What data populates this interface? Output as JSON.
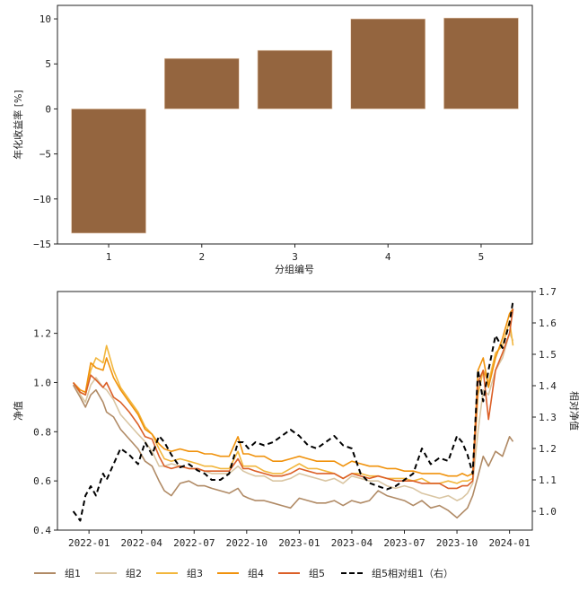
{
  "chart_data": [
    {
      "type": "bar",
      "title": "",
      "xlabel": "分组编号",
      "ylabel": "年化收益率 [%]",
      "categories": [
        "1",
        "2",
        "3",
        "4",
        "5"
      ],
      "values": [
        -13.8,
        5.6,
        6.5,
        10.0,
        10.1
      ],
      "ylim": [
        -15,
        11.5
      ],
      "yticks": [
        -15,
        -10,
        -5,
        0,
        5,
        10
      ],
      "ytick_labels": [
        "−15",
        "−10",
        "−5",
        "0",
        "5",
        "10"
      ],
      "color": "#94653f",
      "grid": false
    },
    {
      "type": "line",
      "title": "",
      "xlabel": "",
      "ylabel": "净值",
      "ylabel_right": "相对净值",
      "x_ticks": [
        "2022-01",
        "2022-04",
        "2022-07",
        "2022-10",
        "2023-01",
        "2023-04",
        "2023-07",
        "2023-10",
        "2024-01"
      ],
      "ylim": [
        0.4,
        1.37
      ],
      "yticks": [
        0.4,
        0.6,
        0.8,
        1.0,
        1.2
      ],
      "ytick_labels": [
        "0.4",
        "0.6",
        "0.8",
        "1.0",
        "1.2"
      ],
      "ylim_right": [
        0.94,
        1.7
      ],
      "yticks_right": [
        1.0,
        1.1,
        1.2,
        1.3,
        1.4,
        1.5,
        1.6,
        1.7
      ],
      "ytick_labels_right": [
        "1.0",
        "1.1",
        "1.2",
        "1.3",
        "1.4",
        "1.5",
        "1.6",
        "1.7"
      ],
      "x_range_months": [
        -1.8,
        25.3
      ],
      "x_months": [
        -0.9,
        -0.5,
        -0.2,
        0.1,
        0.4,
        0.8,
        1.0,
        1.4,
        1.8,
        2.3,
        2.8,
        3.2,
        3.6,
        4.0,
        4.3,
        4.7,
        5.2,
        5.7,
        6.2,
        6.6,
        7.0,
        7.5,
        8.0,
        8.5,
        8.8,
        9.1,
        9.5,
        10.0,
        10.5,
        11.0,
        11.5,
        12.0,
        12.5,
        13.0,
        13.5,
        14.0,
        14.5,
        15.0,
        15.5,
        16.0,
        16.5,
        17.0,
        17.5,
        18.0,
        18.5,
        19.0,
        19.5,
        20.0,
        20.5,
        21.0,
        21.3,
        21.6,
        21.9,
        22.2,
        22.5,
        22.8,
        23.2,
        23.6,
        24.0,
        24.2
      ],
      "legend_position": "bottom",
      "grid": false,
      "series": [
        {
          "name": "组1",
          "color": "#b08a65",
          "axis": "left",
          "dashed": false,
          "values": [
            0.99,
            0.94,
            0.9,
            0.95,
            0.97,
            0.92,
            0.88,
            0.86,
            0.81,
            0.77,
            0.73,
            0.68,
            0.66,
            0.6,
            0.56,
            0.54,
            0.59,
            0.6,
            0.58,
            0.58,
            0.57,
            0.56,
            0.55,
            0.57,
            0.54,
            0.53,
            0.52,
            0.52,
            0.51,
            0.5,
            0.49,
            0.53,
            0.52,
            0.51,
            0.51,
            0.52,
            0.5,
            0.52,
            0.51,
            0.52,
            0.56,
            0.54,
            0.53,
            0.52,
            0.5,
            0.52,
            0.49,
            0.5,
            0.48,
            0.45,
            0.47,
            0.49,
            0.54,
            0.62,
            0.7,
            0.66,
            0.72,
            0.7,
            0.78,
            0.76
          ]
        },
        {
          "name": "组2",
          "color": "#d9c5a2",
          "axis": "left",
          "dashed": false,
          "values": [
            1.0,
            0.95,
            0.92,
            0.99,
            1.02,
            0.98,
            0.97,
            0.93,
            0.87,
            0.83,
            0.79,
            0.76,
            0.72,
            0.66,
            0.66,
            0.67,
            0.66,
            0.65,
            0.65,
            0.64,
            0.63,
            0.63,
            0.63,
            0.66,
            0.64,
            0.63,
            0.62,
            0.62,
            0.6,
            0.6,
            0.61,
            0.63,
            0.62,
            0.61,
            0.6,
            0.61,
            0.59,
            0.62,
            0.61,
            0.6,
            0.6,
            0.58,
            0.57,
            0.58,
            0.57,
            0.55,
            0.54,
            0.53,
            0.54,
            0.52,
            0.53,
            0.55,
            0.59,
            0.8,
            0.97,
            0.95,
            1.05,
            1.1,
            1.2,
            1.17
          ]
        },
        {
          "name": "组3",
          "color": "#f2b63c",
          "axis": "left",
          "dashed": false,
          "values": [
            1.0,
            0.96,
            0.95,
            1.05,
            1.1,
            1.08,
            1.15,
            1.05,
            0.98,
            0.93,
            0.88,
            0.82,
            0.79,
            0.73,
            0.69,
            0.68,
            0.69,
            0.68,
            0.67,
            0.66,
            0.66,
            0.65,
            0.65,
            0.72,
            0.66,
            0.66,
            0.66,
            0.64,
            0.63,
            0.63,
            0.65,
            0.67,
            0.65,
            0.65,
            0.64,
            0.63,
            0.61,
            0.63,
            0.63,
            0.62,
            0.62,
            0.61,
            0.61,
            0.61,
            0.6,
            0.61,
            0.59,
            0.59,
            0.6,
            0.59,
            0.6,
            0.6,
            0.61,
            0.95,
            1.05,
            1.0,
            1.12,
            1.15,
            1.25,
            1.15
          ]
        },
        {
          "name": "组4",
          "color": "#f0920c",
          "axis": "left",
          "dashed": false,
          "values": [
            1.0,
            0.97,
            0.96,
            1.08,
            1.06,
            1.05,
            1.1,
            1.02,
            0.97,
            0.92,
            0.87,
            0.81,
            0.79,
            0.75,
            0.73,
            0.72,
            0.73,
            0.72,
            0.72,
            0.71,
            0.71,
            0.7,
            0.7,
            0.78,
            0.71,
            0.71,
            0.7,
            0.7,
            0.68,
            0.68,
            0.69,
            0.7,
            0.69,
            0.68,
            0.68,
            0.68,
            0.66,
            0.68,
            0.67,
            0.66,
            0.66,
            0.65,
            0.65,
            0.64,
            0.64,
            0.63,
            0.63,
            0.63,
            0.62,
            0.62,
            0.63,
            0.62,
            0.63,
            1.05,
            1.1,
            0.98,
            1.1,
            1.18,
            1.28,
            1.3
          ]
        },
        {
          "name": "组5",
          "color": "#db5f27",
          "axis": "left",
          "dashed": false,
          "values": [
            1.0,
            0.96,
            0.95,
            1.03,
            1.01,
            0.98,
            1.0,
            0.94,
            0.92,
            0.88,
            0.83,
            0.78,
            0.77,
            0.7,
            0.66,
            0.65,
            0.66,
            0.65,
            0.65,
            0.64,
            0.64,
            0.64,
            0.64,
            0.69,
            0.65,
            0.65,
            0.64,
            0.63,
            0.62,
            0.62,
            0.63,
            0.65,
            0.64,
            0.63,
            0.63,
            0.63,
            0.61,
            0.63,
            0.62,
            0.61,
            0.62,
            0.61,
            0.6,
            0.6,
            0.6,
            0.59,
            0.59,
            0.59,
            0.57,
            0.57,
            0.58,
            0.58,
            0.6,
            1.0,
            1.05,
            0.85,
            1.05,
            1.12,
            1.2,
            1.3
          ]
        },
        {
          "name": "组5相对组1（右）",
          "color": "#000000",
          "axis": "right",
          "dashed": true,
          "values": [
            1.0,
            0.97,
            1.05,
            1.08,
            1.05,
            1.12,
            1.1,
            1.15,
            1.2,
            1.18,
            1.15,
            1.22,
            1.18,
            1.24,
            1.22,
            1.18,
            1.14,
            1.15,
            1.13,
            1.12,
            1.1,
            1.1,
            1.12,
            1.22,
            1.22,
            1.2,
            1.22,
            1.21,
            1.22,
            1.24,
            1.26,
            1.24,
            1.21,
            1.2,
            1.22,
            1.24,
            1.21,
            1.2,
            1.12,
            1.09,
            1.08,
            1.07,
            1.08,
            1.1,
            1.12,
            1.2,
            1.15,
            1.17,
            1.16,
            1.24,
            1.22,
            1.18,
            1.12,
            1.45,
            1.35,
            1.45,
            1.56,
            1.52,
            1.6,
            1.67
          ]
        }
      ]
    }
  ],
  "legend": [
    "组1",
    "组2",
    "组3",
    "组4",
    "组5",
    "组5相对组1（右）"
  ]
}
